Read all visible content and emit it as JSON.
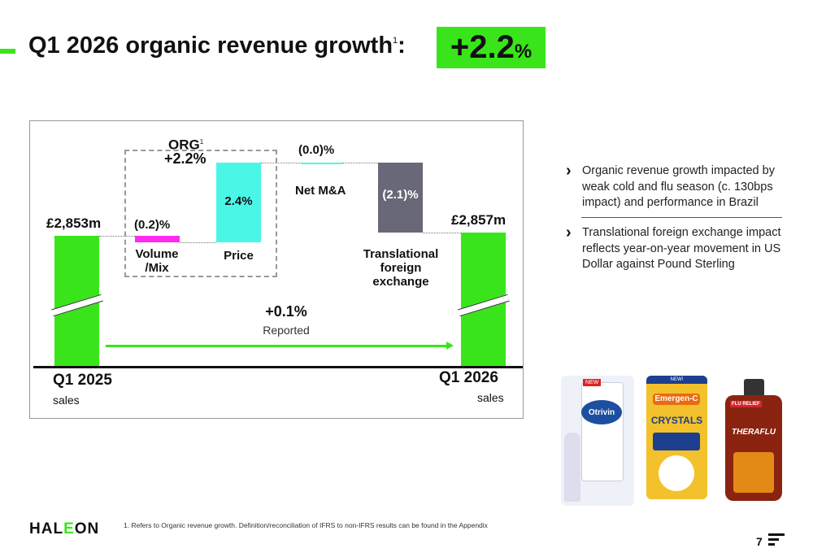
{
  "title": {
    "text": "Q1 2026 organic revenue growth",
    "sup": "1",
    "colon": ":",
    "badge_value": "+2.2",
    "badge_unit": "%"
  },
  "colors": {
    "accent": "#39e51a",
    "volume": "#ff2bf0",
    "price": "#4af7e6",
    "net_ma": "#4af7e6",
    "fx": "#686878",
    "sales": "#39e51a"
  },
  "chart_data": {
    "type": "waterfall",
    "categories": [
      "Q1 2025 sales",
      "Volume /Mix",
      "Price",
      "Net M&A",
      "Translational foreign exchange",
      "Q1 2026 sales"
    ],
    "start": {
      "label": "Q1 2025",
      "sublabel": "sales",
      "value_label": "£2,853m",
      "value": 2853
    },
    "end": {
      "label": "Q1 2026",
      "sublabel": "sales",
      "value_label": "£2,857m",
      "value": 2857
    },
    "steps": [
      {
        "name": "Volume\n/Mix",
        "line1": "Volume",
        "line2": "/Mix",
        "value_pct": -0.2,
        "label": "(0.2)%"
      },
      {
        "name": "Price",
        "value_pct": 2.4,
        "label": "2.4%"
      },
      {
        "name": "Net M&A",
        "value_pct": 0.0,
        "label": "(0.0)%"
      },
      {
        "name": "Translational foreign exchange",
        "line1": "Translational",
        "line2": "foreign",
        "line3": "exchange",
        "value_pct": -2.1,
        "label": "(2.1)%"
      }
    ],
    "org": {
      "label": "ORG",
      "sup": "1",
      "value": "+2.2%"
    },
    "reported": {
      "value": "+0.1%",
      "label": "Reported"
    },
    "axis_break": true
  },
  "bullets": [
    {
      "text": "Organic revenue growth impacted by weak cold and flu season (c. 130bps impact) and performance in Brazil"
    },
    {
      "text": "Translational foreign exchange impact reflects year-on-year movement in US Dollar against Pound Sterling"
    }
  ],
  "products": [
    {
      "brand": "Otrivin",
      "tag": "NEW",
      "color": "#1d4fa0"
    },
    {
      "brand": "Emergen-C",
      "sub": "CRYSTALS",
      "tag": "NEW!",
      "color": "#f3c12b"
    },
    {
      "brand": "THERAFLU",
      "sub": "FLU RELIEF",
      "color": "#8a2410"
    }
  ],
  "footer": {
    "logo": "HALEON",
    "footnote": "1. Refers to Organic revenue growth. Definition/reconciliation of IFRS to non-IFRS results can be found in the Appendix",
    "page": "7"
  }
}
